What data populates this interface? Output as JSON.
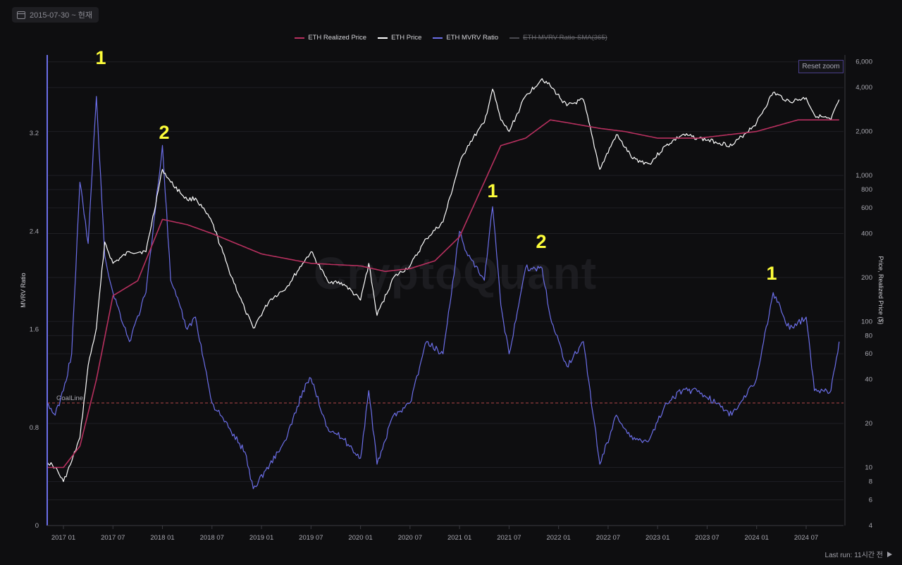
{
  "date_range": {
    "label": "2015-07-30 ~ 현재",
    "icon": "calendar-icon"
  },
  "legend": [
    {
      "label": "ETH Realized Price",
      "color": "#b8305f",
      "active": true
    },
    {
      "label": "ETH Price",
      "color": "#ffffff",
      "active": true
    },
    {
      "label": "ETH MVRV Ratio",
      "color": "#6b6ee8",
      "active": true
    },
    {
      "label": "ETH MVRV Ratio-SMA(365)",
      "color": "#4a4a50",
      "active": false
    }
  ],
  "reset_zoom_label": "Reset zoom",
  "watermark": "CryptoQuant",
  "last_run": "Last run: 11시간 전",
  "goal_line_label": "GoalLine",
  "annotations": [
    "1",
    "2",
    "1",
    "2",
    "1"
  ],
  "chart_data": {
    "type": "line",
    "x_ticks": [
      "2017 01",
      "2017 07",
      "2018 01",
      "2018 07",
      "2019 01",
      "2019 07",
      "2020 01",
      "2020 07",
      "2021 01",
      "2021 07",
      "2022 01",
      "2022 07",
      "2023 01",
      "2023 07",
      "2024 01",
      "2024 07"
    ],
    "left_axis": {
      "label": "MVRV Ratio",
      "ticks": [
        "0",
        "0.8",
        "1.6",
        "2.4",
        "3.2"
      ],
      "ylim": [
        0,
        3.2
      ]
    },
    "right_axis": {
      "label": "Price, Realized Price ($)",
      "scale": "log",
      "ticks": [
        "4",
        "6",
        "8",
        "10",
        "20",
        "40",
        "60",
        "80",
        "100",
        "200",
        "400",
        "600",
        "800",
        "1,000",
        "2,000",
        "4,000",
        "6,000"
      ]
    },
    "goal_line": 1.0,
    "series": [
      {
        "name": "ETH Price",
        "axis": "right",
        "color": "#ffffff",
        "x": [
          "2016-11",
          "2016-12",
          "2017-01",
          "2017-02",
          "2017-03",
          "2017-04",
          "2017-05",
          "2017-06",
          "2017-07",
          "2017-09",
          "2017-11",
          "2018-01",
          "2018-02",
          "2018-04",
          "2018-05",
          "2018-07",
          "2018-09",
          "2018-11",
          "2018-12",
          "2019-02",
          "2019-04",
          "2019-06",
          "2019-07",
          "2019-09",
          "2019-11",
          "2020-01",
          "2020-02",
          "2020-03",
          "2020-05",
          "2020-07",
          "2020-09",
          "2020-11",
          "2021-01",
          "2021-02",
          "2021-04",
          "2021-05",
          "2021-06",
          "2021-07",
          "2021-09",
          "2021-11",
          "2021-12",
          "2022-02",
          "2022-04",
          "2022-06",
          "2022-08",
          "2022-10",
          "2022-12",
          "2023-02",
          "2023-04",
          "2023-06",
          "2023-08",
          "2023-10",
          "2024-01",
          "2024-03",
          "2024-05",
          "2024-07",
          "2024-08",
          "2024-10",
          "2024-11"
        ],
        "values": [
          11,
          10,
          8,
          11,
          16,
          50,
          90,
          350,
          250,
          300,
          300,
          1100,
          900,
          680,
          700,
          480,
          230,
          120,
          90,
          140,
          170,
          250,
          300,
          190,
          180,
          140,
          250,
          110,
          200,
          240,
          370,
          480,
          1200,
          1600,
          2300,
          3900,
          2400,
          2000,
          3500,
          4600,
          4100,
          3000,
          3300,
          1100,
          1900,
          1300,
          1200,
          1600,
          1900,
          1800,
          1700,
          1600,
          2300,
          3700,
          3200,
          3400,
          2600,
          2400,
          3300
        ]
      },
      {
        "name": "ETH Realized Price",
        "axis": "right",
        "color": "#b8305f",
        "x": [
          "2016-11",
          "2017-01",
          "2017-03",
          "2017-05",
          "2017-07",
          "2017-10",
          "2018-01",
          "2018-04",
          "2018-07",
          "2019-01",
          "2019-07",
          "2020-01",
          "2020-04",
          "2020-07",
          "2020-10",
          "2021-01",
          "2021-04",
          "2021-06",
          "2021-09",
          "2021-12",
          "2022-02",
          "2022-06",
          "2022-09",
          "2023-01",
          "2023-06",
          "2024-01",
          "2024-06",
          "2024-11"
        ],
        "values": [
          10,
          10,
          14,
          40,
          150,
          190,
          500,
          460,
          400,
          290,
          250,
          240,
          220,
          230,
          260,
          380,
          900,
          1600,
          1800,
          2400,
          2300,
          2100,
          2000,
          1800,
          1800,
          2000,
          2400,
          2400
        ]
      },
      {
        "name": "ETH MVRV Ratio",
        "axis": "left",
        "color": "#6b6ee8",
        "x": [
          "2016-11",
          "2016-12",
          "2017-01",
          "2017-02",
          "2017-03",
          "2017-04",
          "2017-05",
          "2017-06",
          "2017-07",
          "2017-09",
          "2017-11",
          "2018-01",
          "2018-02",
          "2018-04",
          "2018-05",
          "2018-07",
          "2018-09",
          "2018-11",
          "2018-12",
          "2019-02",
          "2019-04",
          "2019-06",
          "2019-07",
          "2019-09",
          "2019-11",
          "2020-01",
          "2020-02",
          "2020-03",
          "2020-05",
          "2020-07",
          "2020-09",
          "2020-11",
          "2021-01",
          "2021-02",
          "2021-04",
          "2021-05",
          "2021-06",
          "2021-07",
          "2021-09",
          "2021-11",
          "2021-12",
          "2022-02",
          "2022-04",
          "2022-06",
          "2022-08",
          "2022-10",
          "2022-12",
          "2023-02",
          "2023-04",
          "2023-06",
          "2023-08",
          "2023-10",
          "2024-01",
          "2024-03",
          "2024-05",
          "2024-07",
          "2024-08",
          "2024-10",
          "2024-11"
        ],
        "values": [
          1.0,
          0.9,
          1.1,
          1.4,
          2.8,
          2.3,
          3.5,
          2.2,
          1.9,
          1.5,
          1.9,
          3.1,
          2.0,
          1.6,
          1.7,
          1.0,
          0.8,
          0.6,
          0.3,
          0.5,
          0.7,
          1.1,
          1.2,
          0.8,
          0.7,
          0.55,
          1.1,
          0.5,
          0.9,
          1.0,
          1.5,
          1.4,
          2.4,
          2.2,
          2.0,
          2.6,
          1.8,
          1.4,
          2.1,
          2.1,
          1.7,
          1.3,
          1.5,
          0.5,
          0.9,
          0.7,
          0.7,
          1.0,
          1.1,
          1.1,
          1.0,
          0.9,
          1.2,
          1.9,
          1.6,
          1.7,
          1.1,
          1.1,
          1.5
        ]
      }
    ]
  }
}
